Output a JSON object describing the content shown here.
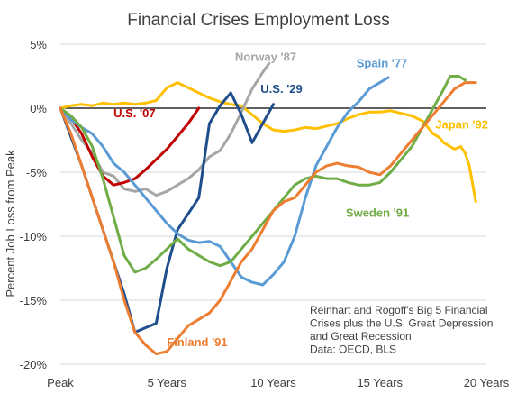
{
  "chart_data": {
    "type": "line",
    "title": "Financial Crises Employment Loss",
    "xlabel": "",
    "ylabel": "Percent Job Loss from Peak",
    "xlim": [
      0,
      20
    ],
    "ylim": [
      -20,
      5
    ],
    "x_ticks": [
      {
        "x": 0,
        "label": "Peak"
      },
      {
        "x": 5,
        "label": "5 Years"
      },
      {
        "x": 10,
        "label": "10 Years"
      },
      {
        "x": 15,
        "label": "15 Years"
      },
      {
        "x": 20,
        "label": "20 Years"
      }
    ],
    "y_ticks": [
      {
        "y": 5,
        "label": "5%"
      },
      {
        "y": 0,
        "label": "0%"
      },
      {
        "y": -5,
        "label": "-5%"
      },
      {
        "y": -10,
        "label": "-10%"
      },
      {
        "y": -15,
        "label": "-15%"
      },
      {
        "y": -20,
        "label": "-20%"
      }
    ],
    "grid": true,
    "legend": "direct labels",
    "note": [
      "Reinhart and Rogoff's Big 5 Financial",
      "Crises plus the U.S. Great Depression",
      "and Great Recession",
      "Data: OECD, BLS"
    ],
    "series": [
      {
        "name": "Japan '92",
        "color": "#FFC000",
        "label_at": [
          17.6,
          -1.6
        ],
        "points": [
          [
            0,
            0
          ],
          [
            0.5,
            0.2
          ],
          [
            1,
            0.3
          ],
          [
            1.5,
            0.2
          ],
          [
            2,
            0.4
          ],
          [
            2.5,
            0.3
          ],
          [
            3,
            0.4
          ],
          [
            3.5,
            0.3
          ],
          [
            4,
            0.4
          ],
          [
            4.5,
            0.6
          ],
          [
            5,
            1.6
          ],
          [
            5.5,
            2.0
          ],
          [
            6,
            1.6
          ],
          [
            6.5,
            1.2
          ],
          [
            7,
            0.8
          ],
          [
            7.5,
            0.5
          ],
          [
            8,
            0.3
          ],
          [
            8.5,
            0.2
          ],
          [
            9,
            -0.5
          ],
          [
            9.5,
            -1.2
          ],
          [
            10,
            -1.7
          ],
          [
            10.5,
            -1.8
          ],
          [
            11,
            -1.7
          ],
          [
            11.5,
            -1.5
          ],
          [
            12,
            -1.6
          ],
          [
            12.5,
            -1.4
          ],
          [
            13,
            -1.2
          ],
          [
            13.5,
            -0.8
          ],
          [
            14,
            -0.5
          ],
          [
            14.5,
            -0.3
          ],
          [
            15,
            -0.3
          ],
          [
            15.5,
            -0.2
          ],
          [
            16,
            -0.4
          ],
          [
            16.5,
            -0.6
          ],
          [
            17,
            -1.0
          ],
          [
            17.5,
            -2.0
          ],
          [
            17.8,
            -2.3
          ],
          [
            18,
            -2.7
          ],
          [
            18.5,
            -3.2
          ],
          [
            18.8,
            -3.0
          ],
          [
            19,
            -3.5
          ],
          [
            19.2,
            -4.5
          ],
          [
            19.5,
            -7.3
          ]
        ]
      },
      {
        "name": "Norway '87",
        "color": "#A6A6A6",
        "label_at": [
          8.2,
          3.7
        ],
        "points": [
          [
            0,
            0
          ],
          [
            0.5,
            -1.2
          ],
          [
            1,
            -2.5
          ],
          [
            1.5,
            -3.5
          ],
          [
            2,
            -5.0
          ],
          [
            2.5,
            -5.3
          ],
          [
            3,
            -6.3
          ],
          [
            3.5,
            -6.5
          ],
          [
            4,
            -6.3
          ],
          [
            4.5,
            -6.8
          ],
          [
            5,
            -6.5
          ],
          [
            5.5,
            -6.0
          ],
          [
            6,
            -5.5
          ],
          [
            6.5,
            -4.8
          ],
          [
            7,
            -3.8
          ],
          [
            7.5,
            -3.3
          ],
          [
            8,
            -2.0
          ],
          [
            8.5,
            -0.3
          ],
          [
            9,
            1.5
          ],
          [
            9.5,
            2.8
          ],
          [
            9.8,
            3.5
          ]
        ]
      },
      {
        "name": "U.S. '07",
        "color": "#C00000",
        "label_at": [
          2.5,
          -0.7
        ],
        "points": [
          [
            0,
            0
          ],
          [
            0.3,
            -0.4
          ],
          [
            0.6,
            -1.0
          ],
          [
            1,
            -2.0
          ],
          [
            1.5,
            -3.8
          ],
          [
            2,
            -5.3
          ],
          [
            2.5,
            -6.0
          ],
          [
            3,
            -5.8
          ],
          [
            3.5,
            -5.5
          ],
          [
            4,
            -4.8
          ],
          [
            4.5,
            -4.0
          ],
          [
            5,
            -3.2
          ],
          [
            5.5,
            -2.2
          ],
          [
            6,
            -1.2
          ],
          [
            6.5,
            0
          ]
        ]
      },
      {
        "name": "U.S. '29",
        "color": "#1F4E8C",
        "label_at": [
          9.4,
          1.2
        ],
        "points": [
          [
            0,
            0
          ],
          [
            1,
            -4.5
          ],
          [
            2,
            -9.5
          ],
          [
            3,
            -14.5
          ],
          [
            3.5,
            -17.5
          ],
          [
            4.5,
            -16.8
          ],
          [
            5,
            -12.5
          ],
          [
            5.5,
            -9.5
          ],
          [
            6.5,
            -7.0
          ],
          [
            7,
            -1.2
          ],
          [
            7.5,
            0.2
          ],
          [
            8,
            1.2
          ],
          [
            8.5,
            -0.5
          ],
          [
            9,
            -2.7
          ],
          [
            9.5,
            -1.2
          ],
          [
            10,
            0.3
          ]
        ]
      },
      {
        "name": "Spain '77",
        "color": "#5B9BD5",
        "label_at": [
          13.9,
          3.2
        ],
        "points": [
          [
            0,
            0
          ],
          [
            0.5,
            -0.9
          ],
          [
            1,
            -1.5
          ],
          [
            1.5,
            -2.0
          ],
          [
            2,
            -3.0
          ],
          [
            2.5,
            -4.3
          ],
          [
            3,
            -5.0
          ],
          [
            3.5,
            -6.0
          ],
          [
            4,
            -7.0
          ],
          [
            4.5,
            -8.0
          ],
          [
            5,
            -9.0
          ],
          [
            5.5,
            -9.8
          ],
          [
            6,
            -10.3
          ],
          [
            6.5,
            -10.5
          ],
          [
            7,
            -10.4
          ],
          [
            7.5,
            -10.8
          ],
          [
            8,
            -12.0
          ],
          [
            8.5,
            -13.2
          ],
          [
            9,
            -13.6
          ],
          [
            9.5,
            -13.8
          ],
          [
            10,
            -13.0
          ],
          [
            10.5,
            -12.0
          ],
          [
            11,
            -10.0
          ],
          [
            11.5,
            -7.0
          ],
          [
            12,
            -4.5
          ],
          [
            12.5,
            -3.0
          ],
          [
            13,
            -1.5
          ],
          [
            13.5,
            -0.3
          ],
          [
            14,
            0.5
          ],
          [
            14.5,
            1.5
          ],
          [
            15,
            2.0
          ],
          [
            15.4,
            2.4
          ]
        ]
      },
      {
        "name": "Sweden '91",
        "color": "#70AD47",
        "label_at": [
          13.4,
          -8.5
        ],
        "points": [
          [
            0,
            0
          ],
          [
            0.5,
            -0.6
          ],
          [
            1,
            -1.5
          ],
          [
            1.5,
            -3.0
          ],
          [
            2,
            -5.5
          ],
          [
            2.5,
            -8.5
          ],
          [
            3,
            -11.5
          ],
          [
            3.5,
            -12.8
          ],
          [
            4,
            -12.5
          ],
          [
            4.5,
            -11.8
          ],
          [
            5,
            -11.0
          ],
          [
            5.5,
            -10.2
          ],
          [
            6,
            -11.0
          ],
          [
            6.5,
            -11.5
          ],
          [
            7,
            -12.0
          ],
          [
            7.5,
            -12.3
          ],
          [
            8,
            -12.0
          ],
          [
            8.5,
            -11.0
          ],
          [
            9,
            -10.0
          ],
          [
            9.5,
            -9.0
          ],
          [
            10,
            -8.0
          ],
          [
            10.5,
            -7.0
          ],
          [
            11,
            -6.0
          ],
          [
            11.5,
            -5.5
          ],
          [
            12,
            -5.3
          ],
          [
            12.5,
            -5.5
          ],
          [
            13,
            -5.5
          ],
          [
            13.5,
            -5.8
          ],
          [
            14,
            -6.0
          ],
          [
            14.5,
            -6.0
          ],
          [
            15,
            -5.8
          ],
          [
            15.5,
            -5.0
          ],
          [
            16,
            -4.0
          ],
          [
            16.5,
            -3.0
          ],
          [
            17,
            -1.5
          ],
          [
            17.5,
            0
          ],
          [
            18,
            1.5
          ],
          [
            18.3,
            2.5
          ],
          [
            18.7,
            2.5
          ],
          [
            19,
            2.2
          ]
        ]
      },
      {
        "name": "Finland '91",
        "color": "#ED7D31",
        "label_at": [
          5.0,
          -18.6
        ],
        "points": [
          [
            0,
            0
          ],
          [
            0.5,
            -2.0
          ],
          [
            1,
            -4.5
          ],
          [
            1.5,
            -7.0
          ],
          [
            2,
            -9.5
          ],
          [
            2.5,
            -12.0
          ],
          [
            3,
            -15.0
          ],
          [
            3.5,
            -17.5
          ],
          [
            4,
            -18.5
          ],
          [
            4.5,
            -19.2
          ],
          [
            5,
            -19.0
          ],
          [
            5.5,
            -18.0
          ],
          [
            6,
            -17.0
          ],
          [
            6.5,
            -16.5
          ],
          [
            7,
            -16.0
          ],
          [
            7.5,
            -15.0
          ],
          [
            8,
            -13.5
          ],
          [
            8.5,
            -12.0
          ],
          [
            9,
            -11.0
          ],
          [
            9.5,
            -9.5
          ],
          [
            10,
            -8.0
          ],
          [
            10.5,
            -7.3
          ],
          [
            11,
            -7.0
          ],
          [
            11.5,
            -6.0
          ],
          [
            12,
            -5.0
          ],
          [
            12.5,
            -4.5
          ],
          [
            13,
            -4.3
          ],
          [
            13.5,
            -4.5
          ],
          [
            14,
            -4.6
          ],
          [
            14.5,
            -5.0
          ],
          [
            15,
            -5.2
          ],
          [
            15.5,
            -4.5
          ],
          [
            16,
            -3.5
          ],
          [
            16.5,
            -2.5
          ],
          [
            17,
            -1.5
          ],
          [
            17.5,
            -0.5
          ],
          [
            18,
            0.5
          ],
          [
            18.5,
            1.5
          ],
          [
            19,
            2.0
          ],
          [
            19.5,
            2.0
          ]
        ]
      }
    ]
  }
}
